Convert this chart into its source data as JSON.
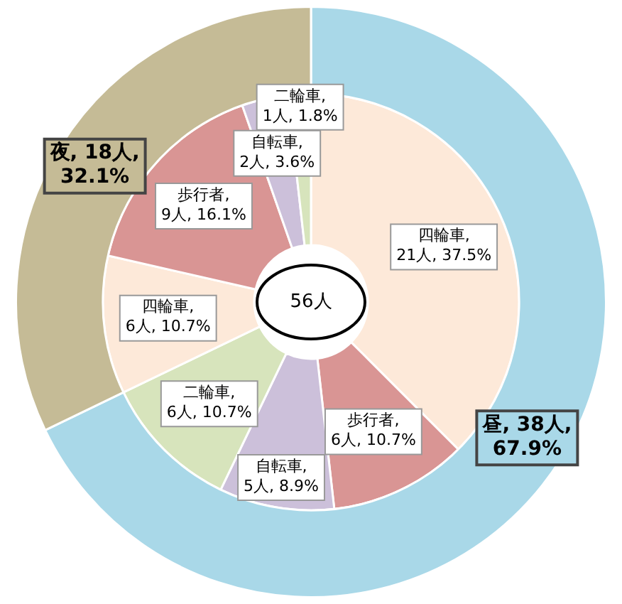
{
  "chart_data": {
    "type": "donut",
    "legend": false,
    "annotations": [
      "56人"
    ],
    "series": [
      {
        "values": [
          38,
          18
        ],
        "colors": [
          "#a9d8e8",
          "#c5bb96"
        ],
        "value_labels": [
          "昼, 38人, 67.9%",
          "夜, 18人, 32.1%"
        ]
      },
      {
        "values": [
          21,
          6,
          5,
          6,
          6,
          9,
          2,
          1
        ],
        "colors": [
          "#fde9d9",
          "#d99594",
          "#ccc0da",
          "#d7e4bc",
          "#fde9d9",
          "#d99594",
          "#ccc0da",
          "#d7e4bc"
        ],
        "value_labels": [
          "四輪車, 21人, 37.5%",
          "歩行者, 6人, 10.7%",
          "自転車, 5人, 8.9%",
          "二輪車, 6人, 10.7%",
          "四輪車, 6人, 10.7%",
          "歩行者, 9人, 16.1%",
          "自転車, 2人, 3.6%",
          "二輪車, 1人, 1.8%"
        ]
      }
    ]
  }
}
